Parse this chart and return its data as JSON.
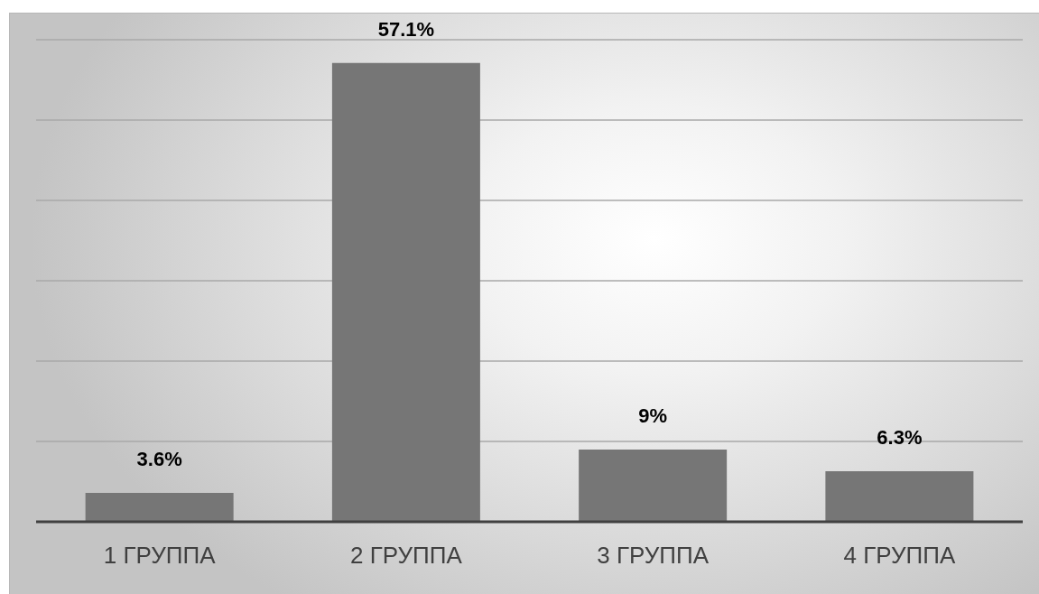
{
  "chart_data": {
    "type": "bar",
    "categories": [
      "1 ГРУППА",
      "2 ГРУППА",
      "3 ГРУППА",
      "4 ГРУППА"
    ],
    "values": [
      3.6,
      57.1,
      9,
      6.3
    ],
    "value_labels": [
      "3.6%",
      "57.1%",
      "9%",
      "6.3%"
    ],
    "color": "#767676",
    "ylim": [
      0,
      60
    ],
    "yticks": [
      {
        "value": 0,
        "label": null
      },
      {
        "value": 10,
        "label": null
      },
      {
        "value": 20,
        "label": null
      },
      {
        "value": 30,
        "label": null
      },
      {
        "value": 40,
        "label": null
      },
      {
        "value": 50,
        "label": null
      },
      {
        "value": 60,
        "label": null
      }
    ],
    "grid": "y",
    "tick_labels": "x"
  }
}
